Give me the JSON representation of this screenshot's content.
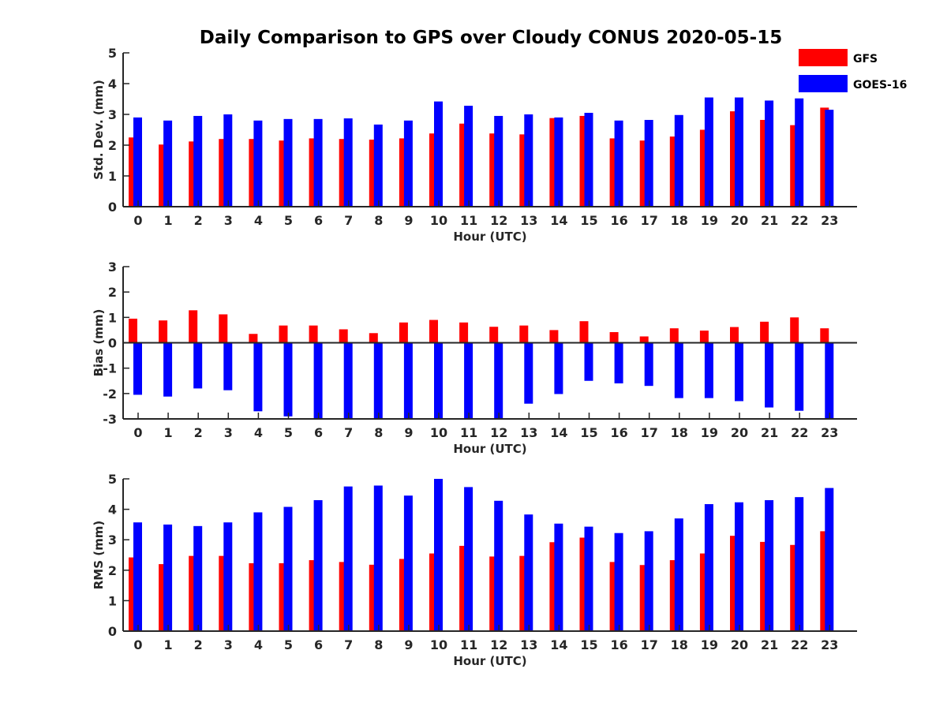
{
  "title": "Daily Comparison to GPS over Cloudy CONUS 2020-05-15",
  "legend": [
    {
      "label": "GFS",
      "color": "#ff0000"
    },
    {
      "label": "GOES-16",
      "color": "#0000ff"
    }
  ],
  "chart_data": [
    {
      "type": "bar",
      "ylabel": "Std. Dev. (mm)",
      "xlabel": "Hour (UTC)",
      "ylim": [
        0,
        5
      ],
      "yticks": [
        "0",
        "1",
        "2",
        "3",
        "4",
        "5"
      ],
      "categories": [
        "0",
        "1",
        "2",
        "3",
        "4",
        "5",
        "6",
        "7",
        "8",
        "9",
        "10",
        "11",
        "12",
        "13",
        "14",
        "15",
        "16",
        "17",
        "18",
        "19",
        "20",
        "21",
        "22",
        "23"
      ],
      "series": [
        {
          "name": "GFS",
          "color": "#ff0000",
          "values": [
            2.25,
            2.02,
            2.12,
            2.2,
            2.2,
            2.15,
            2.22,
            2.2,
            2.18,
            2.22,
            2.38,
            2.7,
            2.38,
            2.35,
            2.88,
            2.95,
            2.22,
            2.15,
            2.28,
            2.5,
            3.1,
            2.82,
            2.65,
            3.22
          ]
        },
        {
          "name": "GOES-16",
          "color": "#0000ff",
          "values": [
            2.9,
            2.8,
            2.95,
            3.0,
            2.8,
            2.85,
            2.85,
            2.87,
            2.67,
            2.8,
            3.42,
            3.28,
            2.95,
            3.0,
            2.9,
            3.05,
            2.8,
            2.82,
            2.98,
            3.55,
            3.55,
            3.45,
            3.52,
            3.15
          ]
        }
      ]
    },
    {
      "type": "bar",
      "ylabel": "Bias (mm)",
      "xlabel": "Hour (UTC)",
      "ylim": [
        -3,
        3
      ],
      "yticks": [
        "-3",
        "-2",
        "-1",
        "0",
        "1",
        "2",
        "3"
      ],
      "categories": [
        "0",
        "1",
        "2",
        "3",
        "4",
        "5",
        "6",
        "7",
        "8",
        "9",
        "10",
        "11",
        "12",
        "13",
        "14",
        "15",
        "16",
        "17",
        "18",
        "19",
        "20",
        "21",
        "22",
        "23"
      ],
      "series": [
        {
          "name": "GFS",
          "color": "#ff0000",
          "values": [
            0.95,
            0.88,
            1.28,
            1.12,
            0.35,
            0.68,
            0.68,
            0.53,
            0.38,
            0.8,
            0.9,
            0.8,
            0.63,
            0.68,
            0.5,
            0.85,
            0.42,
            0.25,
            0.57,
            0.48,
            0.62,
            0.83,
            1.0,
            0.57
          ]
        },
        {
          "name": "GOES-16",
          "color": "#0000ff",
          "values": [
            -2.05,
            -2.12,
            -1.8,
            -1.87,
            -2.7,
            -2.9,
            -3.0,
            -3.0,
            -3.0,
            -3.0,
            -3.0,
            -3.0,
            -3.0,
            -2.4,
            -2.02,
            -1.5,
            -1.6,
            -1.7,
            -2.18,
            -2.18,
            -2.3,
            -2.55,
            -2.68,
            -3.0
          ]
        }
      ]
    },
    {
      "type": "bar",
      "ylabel": "RMS (mm)",
      "xlabel": "Hour (UTC)",
      "ylim": [
        0,
        5
      ],
      "yticks": [
        "0",
        "1",
        "2",
        "3",
        "4",
        "5"
      ],
      "categories": [
        "0",
        "1",
        "2",
        "3",
        "4",
        "5",
        "6",
        "7",
        "8",
        "9",
        "10",
        "11",
        "12",
        "13",
        "14",
        "15",
        "16",
        "17",
        "18",
        "19",
        "20",
        "21",
        "22",
        "23"
      ],
      "series": [
        {
          "name": "GFS",
          "color": "#ff0000",
          "values": [
            2.42,
            2.2,
            2.47,
            2.47,
            2.23,
            2.23,
            2.33,
            2.27,
            2.18,
            2.37,
            2.55,
            2.8,
            2.45,
            2.47,
            2.92,
            3.07,
            2.27,
            2.17,
            2.33,
            2.55,
            3.13,
            2.93,
            2.83,
            3.28
          ]
        },
        {
          "name": "GOES-16",
          "color": "#0000ff",
          "values": [
            3.57,
            3.5,
            3.45,
            3.57,
            3.9,
            4.08,
            4.3,
            4.75,
            4.78,
            4.45,
            5.0,
            4.73,
            4.28,
            3.83,
            3.53,
            3.43,
            3.22,
            3.28,
            3.7,
            4.17,
            4.23,
            4.3,
            4.4,
            4.7
          ]
        }
      ]
    }
  ]
}
